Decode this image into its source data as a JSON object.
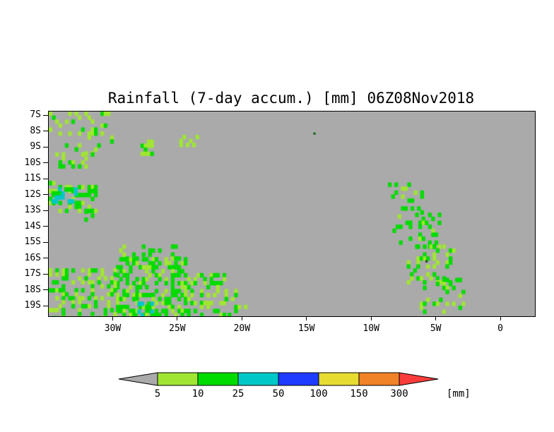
{
  "chart_data": {
    "type": "heatmap",
    "title": "Rainfall (7-day accum.) [mm] 06Z08Nov2018",
    "background_color": "#aaaaaa",
    "extent": {
      "lon_min": -35.0,
      "lon_max": 2.62,
      "lat_top": -6.73,
      "lat_bottom": -19.62
    },
    "cell_deg": 0.25,
    "x_axis": {
      "ticks": [
        {
          "label": "30W",
          "lon": -30
        },
        {
          "label": "25W",
          "lon": -25
        },
        {
          "label": "20W",
          "lon": -20
        },
        {
          "label": "15W",
          "lon": -15
        },
        {
          "label": "10W",
          "lon": -10
        },
        {
          "label": "5W",
          "lon": -5
        },
        {
          "label": "0",
          "lon": 0
        }
      ]
    },
    "y_axis": {
      "ticks": [
        {
          "label": "7S",
          "lat": -7
        },
        {
          "label": "8S",
          "lat": -8
        },
        {
          "label": "9S",
          "lat": -9
        },
        {
          "label": "10S",
          "lat": -10
        },
        {
          "label": "11S",
          "lat": -11
        },
        {
          "label": "12S",
          "lat": -12
        },
        {
          "label": "13S",
          "lat": -13
        },
        {
          "label": "14S",
          "lat": -14
        },
        {
          "label": "15S",
          "lat": -15
        },
        {
          "label": "16S",
          "lat": -16
        },
        {
          "label": "17S",
          "lat": -17
        },
        {
          "label": "18S",
          "lat": -18
        },
        {
          "label": "19S",
          "lat": -19
        }
      ]
    },
    "palette": {
      "lg": "#a0e632",
      "g": "#00dc00",
      "cy": "#00c8c8"
    },
    "rain_clusters": [
      {
        "lon": [
          -35.0,
          -30.2
        ],
        "lat": [
          -9.3,
          -6.73
        ],
        "density": 0.26,
        "colors": [
          "lg",
          "lg",
          "g"
        ]
      },
      {
        "lon": [
          -34.5,
          -31.3
        ],
        "lat": [
          -10.4,
          -9.3
        ],
        "density": 0.18,
        "colors": [
          "lg",
          "g"
        ]
      },
      {
        "lon": [
          -27.9,
          -27.1
        ],
        "lat": [
          -9.3,
          -8.5
        ],
        "density": 0.55,
        "colors": [
          "g",
          "lg"
        ]
      },
      {
        "lon": [
          -24.9,
          -23.6
        ],
        "lat": [
          -8.9,
          -8.2
        ],
        "density": 0.4,
        "colors": [
          "lg"
        ]
      },
      {
        "lon": [
          -35.0,
          -31.4
        ],
        "lat": [
          -13.0,
          -11.1
        ],
        "density": 0.5,
        "colors": [
          "g",
          "g",
          "lg"
        ]
      },
      {
        "lon": [
          -34.8,
          -32.9
        ],
        "lat": [
          -12.4,
          -11.5
        ],
        "density": 0.55,
        "colors": [
          "cy",
          "g"
        ]
      },
      {
        "lon": [
          -32.5,
          -31.6
        ],
        "lat": [
          -13.6,
          -12.9
        ],
        "density": 0.3,
        "colors": [
          "g"
        ]
      },
      {
        "lon": [
          -30.8,
          -24.8
        ],
        "lat": [
          -16.1,
          -15.1
        ],
        "density": 0.22,
        "colors": [
          "g",
          "lg"
        ]
      },
      {
        "lon": [
          -29.8,
          -24.3
        ],
        "lat": [
          -19.62,
          -15.9
        ],
        "density": 0.5,
        "colors": [
          "g",
          "g",
          "lg"
        ]
      },
      {
        "lon": [
          -35.0,
          -29.8
        ],
        "lat": [
          -19.62,
          -16.6
        ],
        "density": 0.33,
        "colors": [
          "g",
          "lg"
        ]
      },
      {
        "lon": [
          -24.3,
          -21.4
        ],
        "lat": [
          -19.5,
          -16.9
        ],
        "density": 0.3,
        "colors": [
          "g",
          "lg"
        ]
      },
      {
        "lon": [
          -28.4,
          -26.7
        ],
        "lat": [
          -19.62,
          -18.7
        ],
        "density": 0.28,
        "colors": [
          "cy",
          "g"
        ]
      },
      {
        "lon": [
          -21.4,
          -19.8
        ],
        "lat": [
          -19.5,
          -17.9
        ],
        "density": 0.12,
        "colors": [
          "g",
          "lg"
        ]
      },
      {
        "lon": [
          -9.0,
          -5.8
        ],
        "lat": [
          -13.3,
          -11.2
        ],
        "density": 0.2,
        "colors": [
          "g",
          "g",
          "lg"
        ]
      },
      {
        "lon": [
          -8.4,
          -4.8
        ],
        "lat": [
          -15.3,
          -13.1
        ],
        "density": 0.26,
        "colors": [
          "g",
          "g",
          "lg"
        ]
      },
      {
        "lon": [
          -7.3,
          -3.7
        ],
        "lat": [
          -17.4,
          -15.1
        ],
        "density": 0.26,
        "colors": [
          "g",
          "lg"
        ]
      },
      {
        "lon": [
          -6.3,
          -2.9
        ],
        "lat": [
          -19.4,
          -17.2
        ],
        "density": 0.22,
        "colors": [
          "g",
          "lg"
        ]
      }
    ],
    "spots": [
      {
        "lon": -14.52,
        "lat": -8.05,
        "color": "#005a00"
      },
      {
        "lon": -5.85,
        "lat": -16.1,
        "color": "#143c14"
      }
    ],
    "colorbar": {
      "levels": [
        "5",
        "10",
        "25",
        "50",
        "100",
        "150",
        "300"
      ],
      "segment_colors": [
        "#a0e632",
        "#00dc00",
        "#00c8c8",
        "#1e3cff",
        "#e6dc32",
        "#f08228"
      ],
      "left_arrow_color": "#aaaaaa",
      "right_arrow_color": "#fa3c3c",
      "unit_label": "[mm]"
    }
  }
}
